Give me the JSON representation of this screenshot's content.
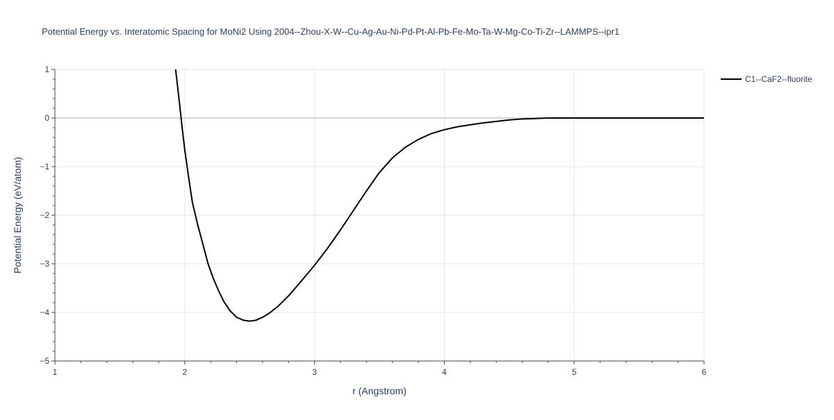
{
  "chart_data": {
    "type": "line",
    "title": "Potential Energy vs. Interatomic Spacing for MoNi2 Using 2004--Zhou-X-W--Cu-Ag-Au-Ni-Pd-Pt-Al-Pb-Fe-Mo-Ta-W-Mg-Co-Ti-Zr--LAMMPS--ipr1",
    "xlabel": "r (Angstrom)",
    "ylabel": "Potential Energy (eV/atom)",
    "xlim": [
      1,
      6
    ],
    "ylim": [
      -5,
      1
    ],
    "x_ticks": [
      1,
      2,
      3,
      4,
      5,
      6
    ],
    "y_ticks": [
      1,
      0,
      -1,
      -2,
      -3,
      -4,
      -5
    ],
    "x_tick_labels": [
      "1",
      "2",
      "3",
      "4",
      "5",
      "6"
    ],
    "y_tick_labels": [
      "1",
      "0",
      "−1",
      "−2",
      "−3",
      "−4",
      "−5"
    ],
    "grid": true,
    "legend_position": "top-right",
    "series": [
      {
        "name": "C1--CaF2--fluorite",
        "color": "#000000",
        "x": [
          1.93,
          1.96,
          1.98,
          2.0,
          2.03,
          2.06,
          2.1,
          2.14,
          2.18,
          2.22,
          2.26,
          2.3,
          2.35,
          2.4,
          2.45,
          2.5,
          2.55,
          2.6,
          2.65,
          2.72,
          2.8,
          2.9,
          3.0,
          3.1,
          3.2,
          3.3,
          3.4,
          3.5,
          3.6,
          3.7,
          3.8,
          3.9,
          4.0,
          4.1,
          4.2,
          4.3,
          4.4,
          4.5,
          4.6,
          4.7,
          4.8,
          5.0,
          5.2,
          5.5,
          6.0
        ],
        "y": [
          1.0,
          0.3,
          -0.2,
          -0.65,
          -1.22,
          -1.75,
          -2.2,
          -2.6,
          -3.0,
          -3.3,
          -3.55,
          -3.77,
          -3.97,
          -4.1,
          -4.16,
          -4.18,
          -4.16,
          -4.1,
          -4.02,
          -3.87,
          -3.66,
          -3.35,
          -3.03,
          -2.68,
          -2.3,
          -1.9,
          -1.5,
          -1.12,
          -0.82,
          -0.6,
          -0.44,
          -0.32,
          -0.24,
          -0.18,
          -0.14,
          -0.1,
          -0.07,
          -0.04,
          -0.02,
          -0.01,
          0.0,
          0.0,
          0.0,
          0.0,
          0.0
        ]
      }
    ]
  }
}
